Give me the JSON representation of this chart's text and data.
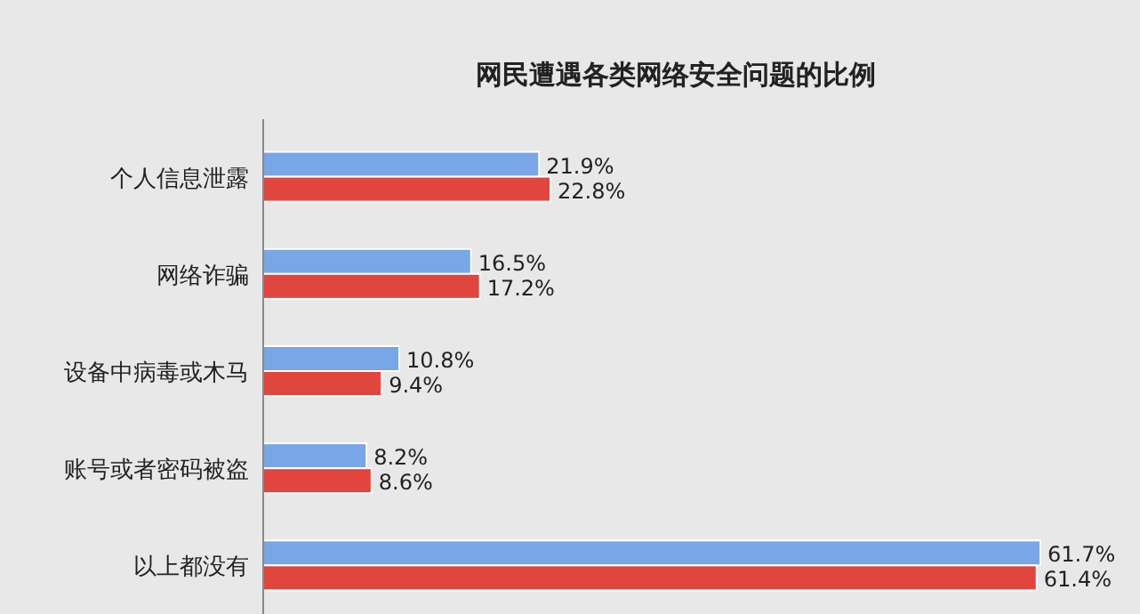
{
  "chart_data": {
    "type": "bar",
    "orientation": "horizontal",
    "title": "网民遭遇各类网络安全问题的比例",
    "categories": [
      "个人信息泄露",
      "网络诈骗",
      "设备中病毒或木马",
      "账号或者密码被盗",
      "以上都没有"
    ],
    "series": [
      {
        "color": "#78a6e6",
        "values": [
          21.9,
          16.5,
          10.8,
          8.2,
          61.7
        ],
        "value_labels": [
          "21.9%",
          "16.5%",
          "10.8%",
          "8.2%",
          "61.7%"
        ]
      },
      {
        "color": "#e0463e",
        "values": [
          22.8,
          17.2,
          9.4,
          8.6,
          61.4
        ],
        "value_labels": [
          "22.8%",
          "17.2%",
          "9.4%",
          "8.6%",
          "61.4%"
        ]
      }
    ],
    "relative": false
  }
}
